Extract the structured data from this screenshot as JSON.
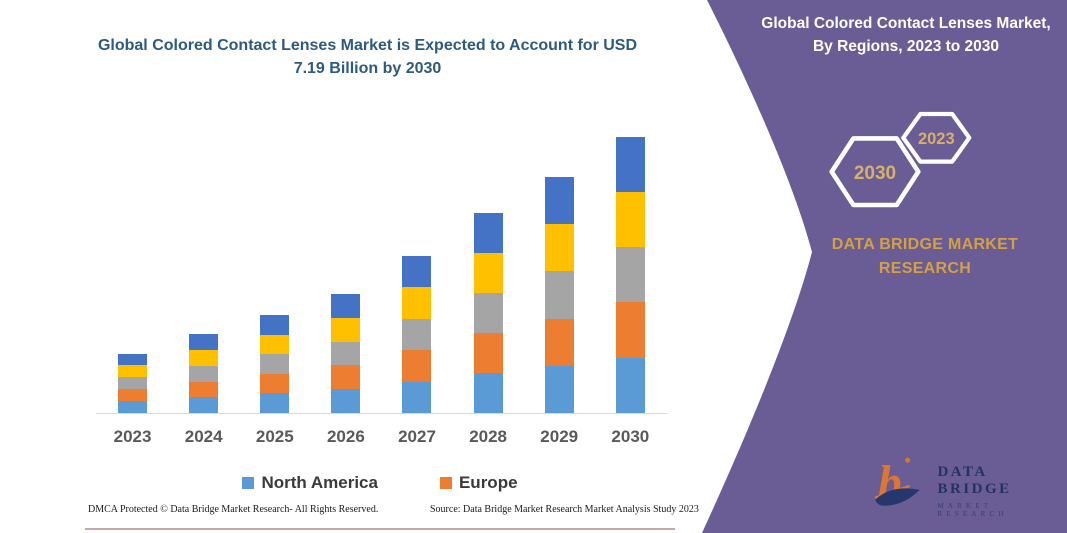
{
  "chart": {
    "title": "Global Colored Contact Lenses Market is Expected to Account for USD 7.19 Billion by 2030"
  },
  "chart_data": {
    "type": "bar",
    "stacked": true,
    "unit": "USD Billion",
    "title": "Global Colored Contact Lenses Market is Expected to Account for USD 7.19 Billion by 2030",
    "categories": [
      "2023",
      "2024",
      "2025",
      "2026",
      "2027",
      "2028",
      "2029",
      "2030"
    ],
    "series": [
      {
        "name": "North America",
        "color": "#5B9BD5",
        "in_legend": true,
        "values": [
          0.31,
          0.41,
          0.51,
          0.62,
          0.82,
          1.04,
          1.23,
          1.44
        ]
      },
      {
        "name": "Europe",
        "color": "#ED7D31",
        "in_legend": true,
        "values": [
          0.31,
          0.41,
          0.51,
          0.62,
          0.82,
          1.04,
          1.23,
          1.44
        ]
      },
      {
        "name": "unlabeled-region-gray",
        "color": "#A5A5A5",
        "in_legend": false,
        "values": [
          0.31,
          0.41,
          0.51,
          0.62,
          0.82,
          1.04,
          1.23,
          1.44
        ]
      },
      {
        "name": "unlabeled-region-yellow",
        "color": "#FFC000",
        "in_legend": false,
        "values": [
          0.31,
          0.41,
          0.51,
          0.62,
          0.82,
          1.04,
          1.23,
          1.44
        ]
      },
      {
        "name": "unlabeled-region-darkblue",
        "color": "#4472C4",
        "in_legend": false,
        "values": [
          0.31,
          0.41,
          0.51,
          0.62,
          0.82,
          1.04,
          1.23,
          1.44
        ]
      }
    ],
    "totals_estimated": [
      1.54,
      2.06,
      2.55,
      3.1,
      4.12,
      5.18,
      6.15,
      7.19
    ],
    "ylim": [
      0,
      7.5
    ],
    "y_axis_visible": false,
    "gridlines": false,
    "legend_position": "bottom",
    "legend_entries": [
      "North America",
      "Europe"
    ]
  },
  "footer": {
    "dmca": "DMCA Protected © Data Bridge Market Research-  All Rights Reserved.",
    "source": "Source: Data Bridge Market Research  Market Analysis Study 2023"
  },
  "panel": {
    "heading": "Global Colored Contact Lenses Market, By Regions, 2023 to 2030",
    "hexagon_back_year": "2030",
    "hexagon_front_year": "2023",
    "brand": "DATA BRIDGE MARKET RESEARCH",
    "logo_title": "DATA BRIDGE",
    "logo_subtitle": "MARKET RESEARCH"
  },
  "colors": {
    "panel_purple": "#6A5C94",
    "title_blue": "#2E5A7E",
    "gold": "#D3A044",
    "hex_year_gold": "#D6B06C",
    "axis_label_gray": "#595959",
    "logo_orange": "#E87A24",
    "logo_navy": "#1E3369"
  }
}
